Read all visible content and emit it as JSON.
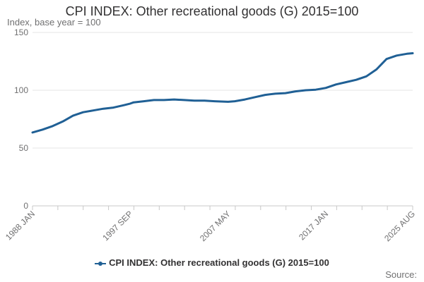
{
  "chart_data": {
    "type": "line",
    "title": "CPI INDEX: Other recreational goods (G) 2015=100",
    "ylabel": "Index, base year = 100",
    "xlabel": "",
    "ylim": [
      0,
      150
    ],
    "yticks": [
      0,
      50,
      100,
      150
    ],
    "xlim": [
      "1988 JAN",
      "2025 AUG"
    ],
    "xticks": [
      {
        "label": "1988 JAN",
        "t": 1988.0
      },
      {
        "label": "1997 SEP",
        "t": 1997.667
      },
      {
        "label": "2007 MAY",
        "t": 2007.333
      },
      {
        "label": "2017 JAN",
        "t": 2017.0
      },
      {
        "label": "2025 AUG",
        "t": 2025.583
      }
    ],
    "series": [
      {
        "name": "CPI INDEX: Other recreational goods (G) 2015=100",
        "color": "#206095",
        "points": [
          [
            1988.0,
            63.5
          ],
          [
            1989.0,
            66
          ],
          [
            1990.0,
            69
          ],
          [
            1991.0,
            73
          ],
          [
            1992.0,
            78
          ],
          [
            1993.0,
            81
          ],
          [
            1994.0,
            82.5
          ],
          [
            1995.0,
            84
          ],
          [
            1996.0,
            85
          ],
          [
            1997.0,
            87
          ],
          [
            1997.667,
            88.5
          ],
          [
            1998.0,
            89.5
          ],
          [
            1999.0,
            90.5
          ],
          [
            2000.0,
            91.5
          ],
          [
            2001.0,
            91.5
          ],
          [
            2002.0,
            92
          ],
          [
            2003.0,
            91.5
          ],
          [
            2004.0,
            91
          ],
          [
            2005.0,
            91
          ],
          [
            2006.0,
            90.5
          ],
          [
            2007.333,
            90
          ],
          [
            2008.0,
            90.5
          ],
          [
            2009.0,
            92
          ],
          [
            2010.0,
            94
          ],
          [
            2011.0,
            96
          ],
          [
            2012.0,
            97
          ],
          [
            2013.0,
            97.5
          ],
          [
            2014.0,
            99
          ],
          [
            2015.0,
            100
          ],
          [
            2016.0,
            100.5
          ],
          [
            2017.0,
            102
          ],
          [
            2018.0,
            105
          ],
          [
            2019.0,
            107
          ],
          [
            2020.0,
            109
          ],
          [
            2021.0,
            112
          ],
          [
            2022.0,
            118
          ],
          [
            2023.0,
            127
          ],
          [
            2024.0,
            130
          ],
          [
            2025.0,
            131.5
          ],
          [
            2025.583,
            132
          ]
        ]
      }
    ],
    "grid": true,
    "legend": "bottom"
  },
  "footer": {
    "source_label": "Source:"
  }
}
